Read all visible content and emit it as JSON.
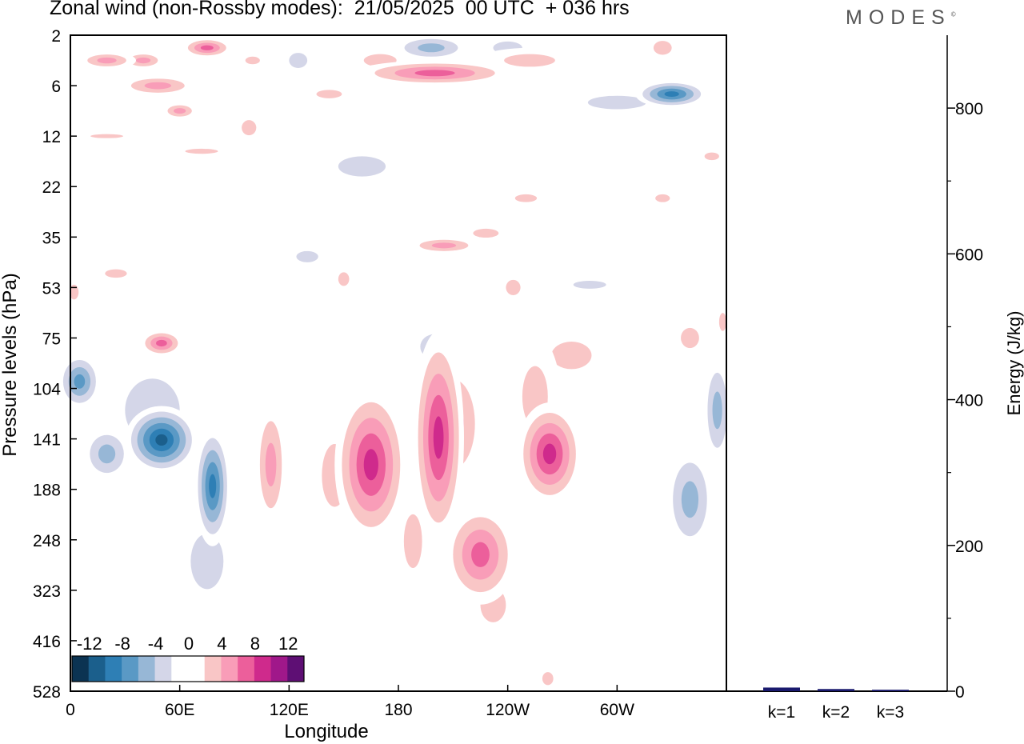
{
  "header": {
    "title": "Zonal wind (non-Rossby modes):  21/05/2025  00 UTC  + 036 hrs",
    "brand": "MODES",
    "brand_mark": "©"
  },
  "chart_data": [
    {
      "type": "heatmap",
      "title": "Zonal wind (non-Rossby modes):  21/05/2025  00 UTC  + 036 hrs",
      "xlabel": "Longitude",
      "ylabel": "Pressure levels (hPa)",
      "x_ticks": [
        "0",
        "60E",
        "120E",
        "180",
        "120W",
        "60W"
      ],
      "x_range": [
        0,
        360
      ],
      "y_levels": [
        2,
        6,
        12,
        22,
        35,
        53,
        75,
        104,
        141,
        188,
        248,
        323,
        416,
        528
      ],
      "y_order": "top-to-bottom",
      "colorbar": {
        "labels": [
          "-12",
          "-8",
          "-4",
          "0",
          "4",
          "8",
          "12"
        ],
        "colors": [
          "#0b3352",
          "#1b5f8c",
          "#2e7fb5",
          "#5a99c5",
          "#97b7d6",
          "#d4d6e8",
          "#ffffff",
          "#ffffff",
          "#f9c6c6",
          "#f99db8",
          "#ec5f9b",
          "#cf2a8c",
          "#a0188a",
          "#5e0f74"
        ]
      },
      "blobs": [
        {
          "lon": 20,
          "lev": 4,
          "dx": 16,
          "dy": 0.7,
          "v": 6
        },
        {
          "lon": 40,
          "lev": 4,
          "dx": 12,
          "dy": 0.7,
          "v": 5
        },
        {
          "lon": 75,
          "lev": 3,
          "dx": 14,
          "dy": 0.8,
          "v": 7
        },
        {
          "lon": 100,
          "lev": 4,
          "dx": 8,
          "dy": 0.6,
          "v": 4
        },
        {
          "lon": 48,
          "lev": 6,
          "dx": 22,
          "dy": 1.0,
          "v": 5
        },
        {
          "lon": 60,
          "lev": 9,
          "dx": 10,
          "dy": 1.0,
          "v": 5
        },
        {
          "lon": 20,
          "lev": 12,
          "dx": 18,
          "dy": 0.6,
          "v": 4
        },
        {
          "lon": 72,
          "lev": 15,
          "dx": 18,
          "dy": 1.0,
          "v": 4
        },
        {
          "lon": 98,
          "lev": 11,
          "dx": 8,
          "dy": 2.0,
          "v": 4
        },
        {
          "lon": 142,
          "lev": 7,
          "dx": 14,
          "dy": 1.0,
          "v": 4
        },
        {
          "lon": 200,
          "lev": 5,
          "dx": 44,
          "dy": 1.0,
          "v": 8
        },
        {
          "lon": 252,
          "lev": 4,
          "dx": 28,
          "dy": 1.0,
          "v": 4
        },
        {
          "lon": 170,
          "lev": 4,
          "dx": 18,
          "dy": 1.0,
          "v": 3
        },
        {
          "lon": 325,
          "lev": 3,
          "dx": 10,
          "dy": 1.2,
          "v": 3
        },
        {
          "lon": 352,
          "lev": 16,
          "dx": 8,
          "dy": 1.5,
          "v": 4
        },
        {
          "lon": 250,
          "lev": 25,
          "dx": 12,
          "dy": 2.0,
          "v": 4
        },
        {
          "lon": 325,
          "lev": 25,
          "dx": 8,
          "dy": 2.0,
          "v": 4
        },
        {
          "lon": 205,
          "lev": 38,
          "dx": 20,
          "dy": 3.0,
          "v": 5
        },
        {
          "lon": 228,
          "lev": 34,
          "dx": 14,
          "dy": 2.5,
          "v": 4
        },
        {
          "lon": 25,
          "lev": 48,
          "dx": 12,
          "dy": 3.0,
          "v": 4
        },
        {
          "lon": 50,
          "lev": 78,
          "dx": 12,
          "dy": 7.0,
          "v": 7
        },
        {
          "lon": 150,
          "lev": 50,
          "dx": 6,
          "dy": 5.0,
          "v": 3
        },
        {
          "lon": 243,
          "lev": 53,
          "dx": 8,
          "dy": 6.0,
          "v": 3
        },
        {
          "lon": 275,
          "lev": 85,
          "dx": 22,
          "dy": 15.0,
          "v": 4
        },
        {
          "lon": 340,
          "lev": 75,
          "dx": 10,
          "dy": 10.0,
          "v": 3
        },
        {
          "lon": 2,
          "lev": 55,
          "dx": 5,
          "dy": 6.0,
          "v": 3
        },
        {
          "lon": 358,
          "lev": 68,
          "dx": 4,
          "dy": 8.0,
          "v": 3
        },
        {
          "lon": 165,
          "lev": 165,
          "dx": 20,
          "dy": 70.0,
          "v": 9
        },
        {
          "lon": 145,
          "lev": 175,
          "dx": 14,
          "dy": 60.0,
          "v": 4
        },
        {
          "lon": 202,
          "lev": 140,
          "dx": 14,
          "dy": 80.0,
          "v": 9
        },
        {
          "lon": 210,
          "lev": 130,
          "dx": 18,
          "dy": 50.0,
          "v": 5
        },
        {
          "lon": 188,
          "lev": 250,
          "dx": 10,
          "dy": 70.0,
          "v": 4
        },
        {
          "lon": 225,
          "lev": 270,
          "dx": 20,
          "dy": 70.0,
          "v": 7
        },
        {
          "lon": 232,
          "lev": 350,
          "dx": 14,
          "dy": 60.0,
          "v": 4
        },
        {
          "lon": 263,
          "lev": 155,
          "dx": 18,
          "dy": 45.0,
          "v": 10
        },
        {
          "lon": 255,
          "lev": 110,
          "dx": 14,
          "dy": 40.0,
          "v": 4
        },
        {
          "lon": 110,
          "lev": 165,
          "dx": 9,
          "dy": 60.0,
          "v": 5
        },
        {
          "lon": 75,
          "lev": 480,
          "dx": 10,
          "dy": 60.0,
          "v": 4
        },
        {
          "lon": 262,
          "lev": 500,
          "dx": 6,
          "dy": 30.0,
          "v": 3
        },
        {
          "lon": 85,
          "lev": 6,
          "dx": 18,
          "dy": 1.5,
          "v": -2
        },
        {
          "lon": 125,
          "lev": 4,
          "dx": 10,
          "dy": 1.2,
          "v": -3
        },
        {
          "lon": 140,
          "lev": 6,
          "dx": 8,
          "dy": 1.0,
          "v": -2
        },
        {
          "lon": 198,
          "lev": 3,
          "dx": 22,
          "dy": 1.1,
          "v": -6
        },
        {
          "lon": 240,
          "lev": 3,
          "dx": 16,
          "dy": 1.0,
          "v": -3
        },
        {
          "lon": 300,
          "lev": 8,
          "dx": 32,
          "dy": 1.6,
          "v": -3
        },
        {
          "lon": 330,
          "lev": 7,
          "dx": 20,
          "dy": 1.5,
          "v": -9
        },
        {
          "lon": 280,
          "lev": 10,
          "dx": 14,
          "dy": 1.5,
          "v": -2
        },
        {
          "lon": 160,
          "lev": 18,
          "dx": 26,
          "dy": 4.0,
          "v": -3
        },
        {
          "lon": 205,
          "lev": 16,
          "dx": 12,
          "dy": 3.0,
          "v": -2
        },
        {
          "lon": 15,
          "lev": 45,
          "dx": 10,
          "dy": 3.0,
          "v": -2
        },
        {
          "lon": 55,
          "lev": 50,
          "dx": 12,
          "dy": 3.0,
          "v": -2
        },
        {
          "lon": 130,
          "lev": 42,
          "dx": 12,
          "dy": 4.0,
          "v": -3
        },
        {
          "lon": 285,
          "lev": 52,
          "dx": 18,
          "dy": 3.0,
          "v": -3
        },
        {
          "lon": 350,
          "lev": 38,
          "dx": 8,
          "dy": 5.0,
          "v": -2
        },
        {
          "lon": 200,
          "lev": 80,
          "dx": 12,
          "dy": 10.0,
          "v": -5
        },
        {
          "lon": 120,
          "lev": 78,
          "dx": 10,
          "dy": 8.0,
          "v": -2
        },
        {
          "lon": 5,
          "lev": 100,
          "dx": 12,
          "dy": 18.0,
          "v": -8
        },
        {
          "lon": 20,
          "lev": 155,
          "dx": 14,
          "dy": 25.0,
          "v": -6
        },
        {
          "lon": 50,
          "lev": 142,
          "dx": 20,
          "dy": 28.0,
          "v": -12
        },
        {
          "lon": 78,
          "lev": 185,
          "dx": 10,
          "dy": 60.0,
          "v": -10
        },
        {
          "lon": 45,
          "lev": 120,
          "dx": 30,
          "dy": 45.0,
          "v": -3
        },
        {
          "lon": 20,
          "lev": 210,
          "dx": 22,
          "dy": 80.0,
          "v": -2
        },
        {
          "lon": 75,
          "lev": 280,
          "dx": 18,
          "dy": 80.0,
          "v": -3
        },
        {
          "lon": 100,
          "lev": 300,
          "dx": 10,
          "dy": 120.0,
          "v": -2
        },
        {
          "lon": 340,
          "lev": 200,
          "dx": 14,
          "dy": 60.0,
          "v": -5
        },
        {
          "lon": 355,
          "lev": 120,
          "dx": 8,
          "dy": 40.0,
          "v": -6
        },
        {
          "lon": 290,
          "lev": 250,
          "dx": 10,
          "dy": 60.0,
          "v": -2
        },
        {
          "lon": 275,
          "lev": 300,
          "dx": 6,
          "dy": 40.0,
          "v": -2
        },
        {
          "lon": 225,
          "lev": 500,
          "dx": 6,
          "dy": 40.0,
          "v": -2
        }
      ]
    },
    {
      "type": "bar",
      "categories": [
        "k=1",
        "k=2",
        "k=3"
      ],
      "values": [
        5,
        3,
        2
      ],
      "ylabel": "Energy (J/kg)",
      "ylim": [
        0,
        900
      ],
      "y_ticks": [
        0,
        200,
        400,
        600,
        800
      ],
      "color": "#1a1a6e"
    }
  ]
}
